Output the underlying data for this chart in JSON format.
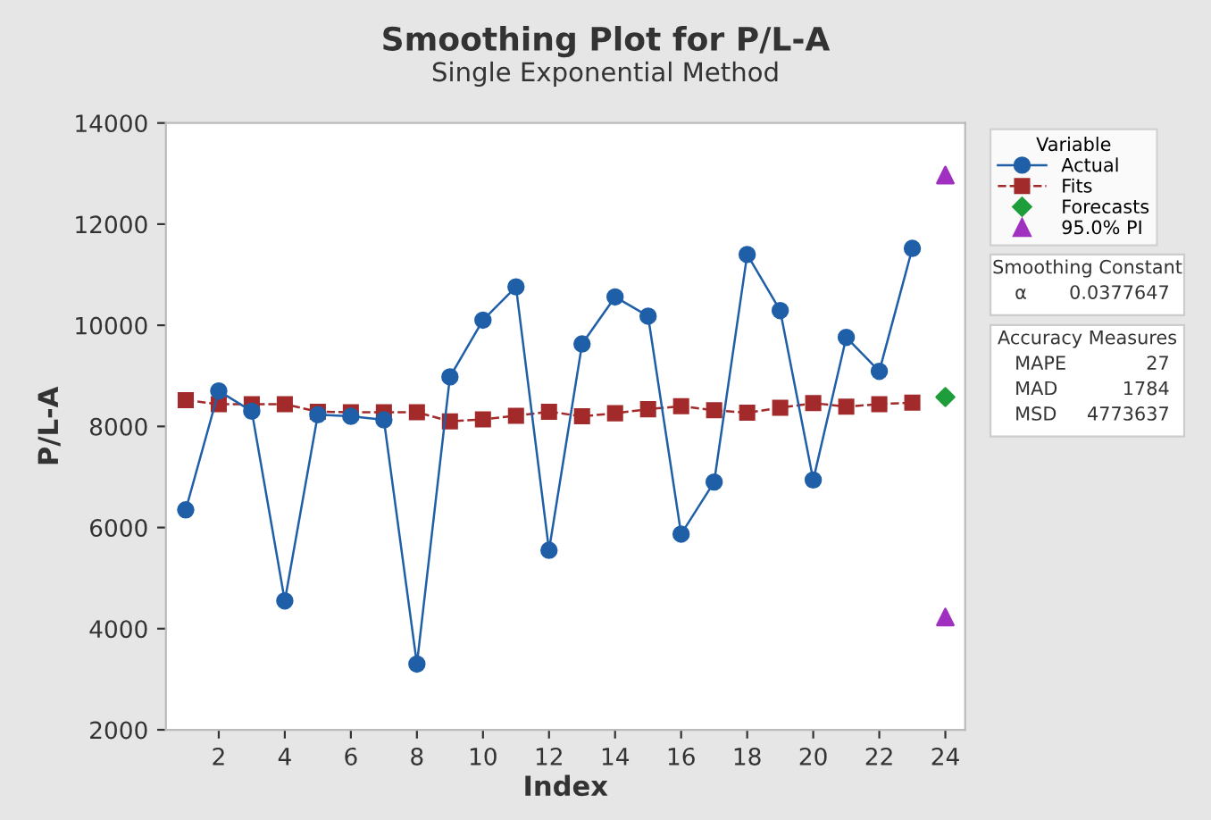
{
  "chart_data": {
    "type": "line",
    "title": "Smoothing Plot for P/L-A",
    "subtitle": "Single Exponential Method",
    "xlabel": "Index",
    "ylabel": "P/L-A",
    "legend_title": "Variable",
    "xlim": [
      0.4,
      24.6
    ],
    "xticks": [
      2,
      4,
      6,
      8,
      10,
      12,
      14,
      16,
      18,
      20,
      22,
      24
    ],
    "ylim": [
      2000,
      14000
    ],
    "yticks": [
      2000,
      4000,
      6000,
      8000,
      10000,
      12000,
      14000
    ],
    "grid": false,
    "legend": "right",
    "series": [
      {
        "name": "Actual",
        "color": "#1f5fa8",
        "marker": "circle",
        "line_style": "solid",
        "x": [
          1,
          2,
          3,
          4,
          5,
          6,
          7,
          8,
          9,
          10,
          11,
          12,
          13,
          14,
          15,
          16,
          17,
          18,
          19,
          20,
          21,
          22,
          23
        ],
        "values": [
          6350,
          8700,
          8300,
          4550,
          8230,
          8200,
          8130,
          3300,
          8980,
          10100,
          10760,
          5550,
          9630,
          10560,
          10180,
          5870,
          6900,
          11400,
          10290,
          6940,
          9760,
          9090,
          11520
        ]
      },
      {
        "name": "Fits",
        "color": "#a32a2a",
        "marker": "square",
        "line_style": "dashed",
        "x": [
          1,
          2,
          3,
          4,
          5,
          6,
          7,
          8,
          9,
          10,
          11,
          12,
          13,
          14,
          15,
          16,
          17,
          18,
          19,
          20,
          21,
          22,
          23
        ],
        "values": [
          8520,
          8440,
          8440,
          8440,
          8290,
          8280,
          8280,
          8280,
          8100,
          8140,
          8210,
          8290,
          8200,
          8260,
          8340,
          8400,
          8320,
          8270,
          8370,
          8460,
          8390,
          8440,
          8470
        ]
      },
      {
        "name": "Forecasts",
        "type": "scatter",
        "color": "#1e9e3a",
        "marker": "diamond",
        "x": [
          24
        ],
        "values": [
          8580
        ]
      },
      {
        "name": "95.0% PI",
        "type": "scatter",
        "color": "#a030c0",
        "marker": "triangle",
        "x": [
          24,
          24
        ],
        "values": [
          12970,
          4230
        ]
      }
    ],
    "annotations": [
      "Smoothing Constant\nα\t0.0377647",
      "Accuracy Measures\nMAPE\t27\nMAD\t1784\nMSD\t4773637"
    ]
  }
}
